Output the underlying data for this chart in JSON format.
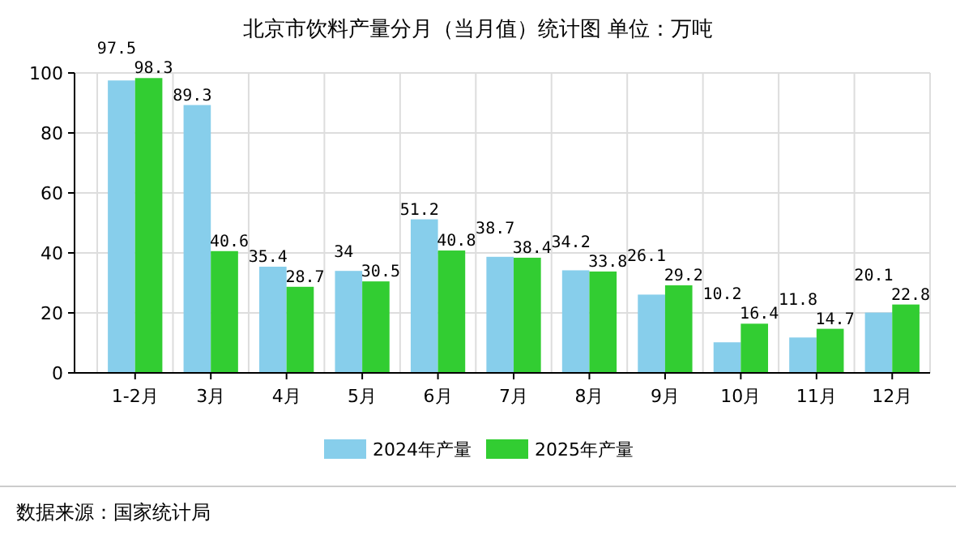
{
  "chart_data": {
    "type": "bar",
    "title": "北京市饮料产量分月（当月值）统计图 单位：万吨",
    "categories": [
      "1-2月",
      "3月",
      "4月",
      "5月",
      "6月",
      "7月",
      "8月",
      "9月",
      "10月",
      "11月",
      "12月"
    ],
    "series": [
      {
        "name": "2024年产量",
        "color": "#87ceeb",
        "values": [
          97.5,
          89.3,
          35.4,
          34,
          51.2,
          38.7,
          34.2,
          26.1,
          10.2,
          11.8,
          20.1
        ]
      },
      {
        "name": "2025年产量",
        "color": "#32cd32",
        "values": [
          98.3,
          40.6,
          28.7,
          30.5,
          40.8,
          38.4,
          33.8,
          29.2,
          16.4,
          14.7,
          22.8
        ]
      }
    ],
    "ylim": [
      0,
      100
    ],
    "yticks": [
      0,
      20,
      40,
      60,
      80,
      100
    ],
    "grid": true,
    "legend": "bottom",
    "data_labels": true,
    "annotations": [
      "数据来源：国家统计局"
    ]
  }
}
